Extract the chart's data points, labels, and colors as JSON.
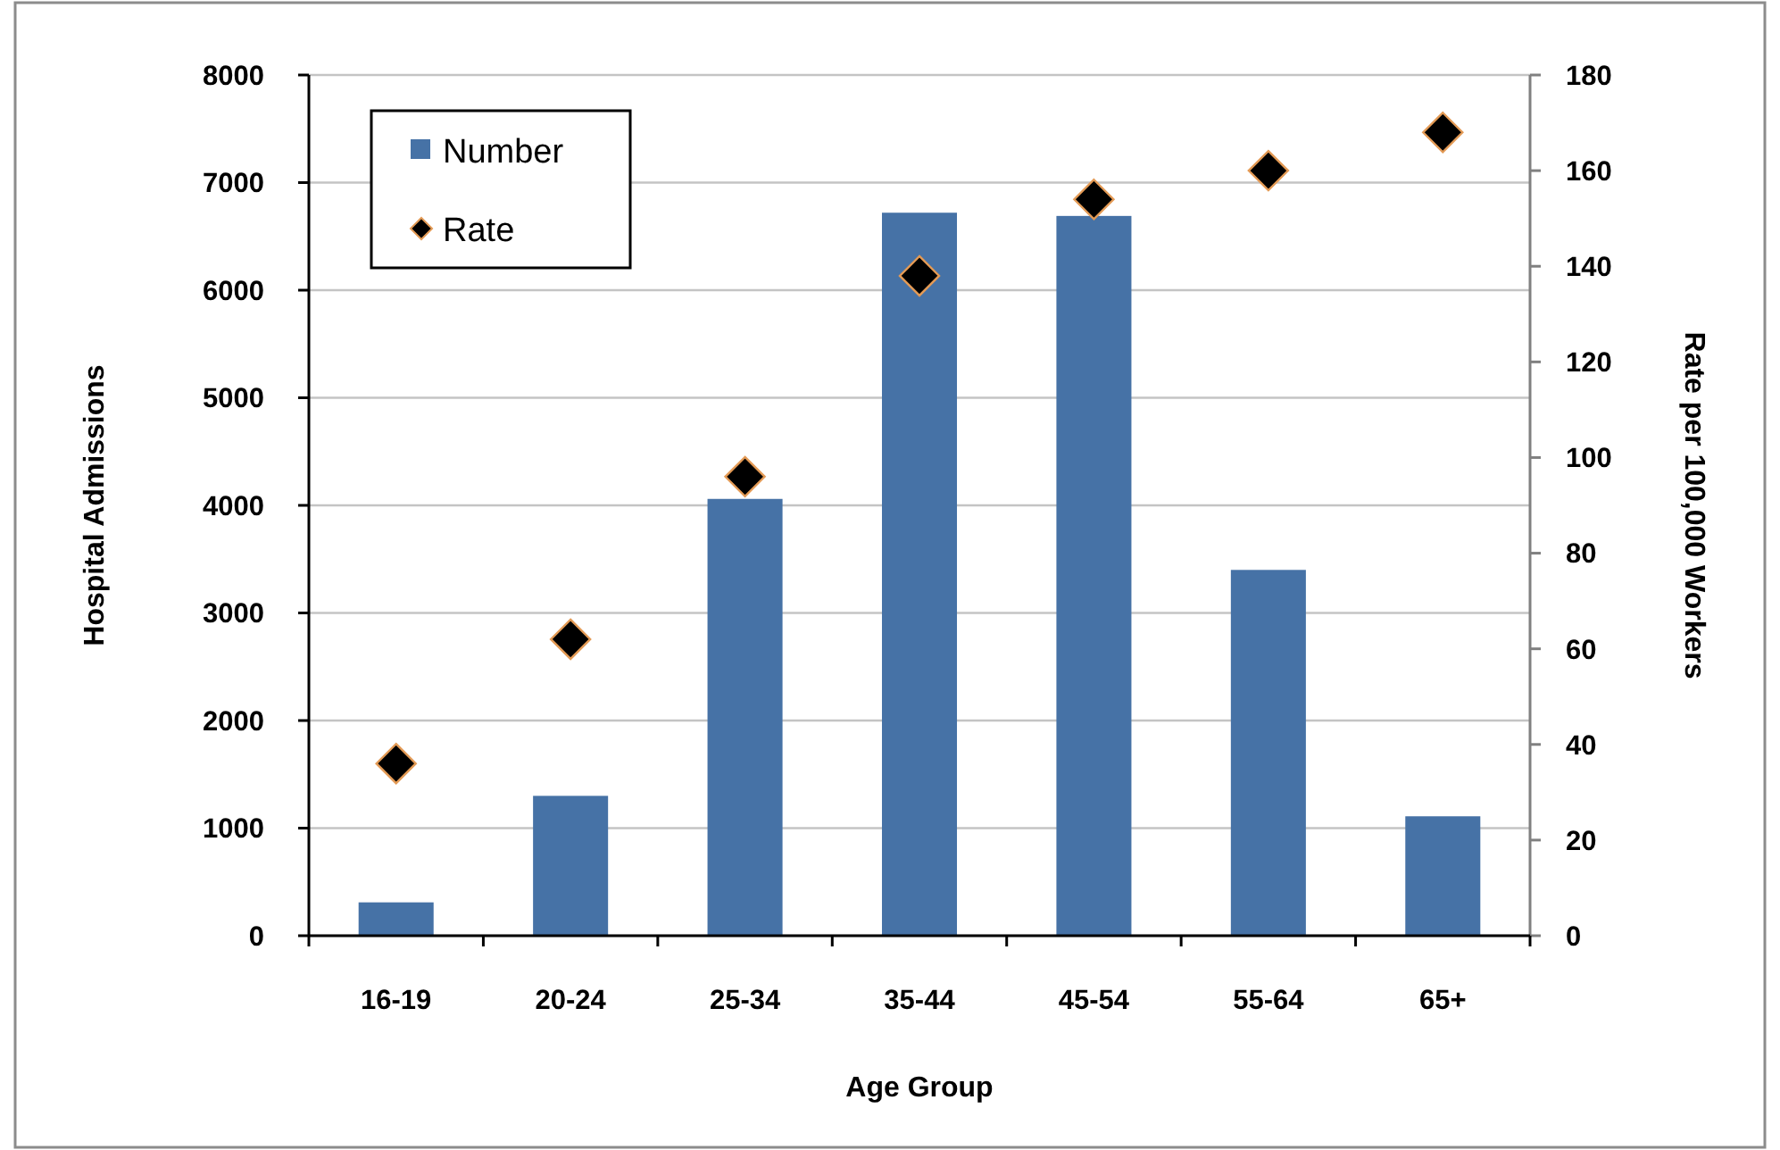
{
  "chart_data": {
    "type": "bar",
    "xlabel": "Age Group",
    "ylabel": "Hospital Admissions",
    "y2label": "Rate per 100,000 Workers",
    "categories": [
      "16-19",
      "20-24",
      "25-34",
      "35-44",
      "45-54",
      "55-64",
      "65+"
    ],
    "series": [
      {
        "name": "Number",
        "color": "#4672a6",
        "values": [
          310,
          1300,
          4060,
          6720,
          6690,
          3400,
          1110
        ]
      },
      {
        "name": "Rate",
        "type": "scatter",
        "axis": "y2",
        "color": "#000000",
        "values": [
          36,
          62,
          96,
          138,
          154,
          160,
          168
        ]
      }
    ],
    "ylim": [
      0,
      8000
    ],
    "yticks": [
      0,
      1000,
      2000,
      3000,
      4000,
      5000,
      6000,
      7000,
      8000
    ],
    "y2lim": [
      0,
      180
    ],
    "y2ticks": [
      0,
      20,
      40,
      60,
      80,
      100,
      120,
      140,
      160,
      180
    ],
    "grid": "y",
    "legend": "top left",
    "marker": "diamond"
  }
}
